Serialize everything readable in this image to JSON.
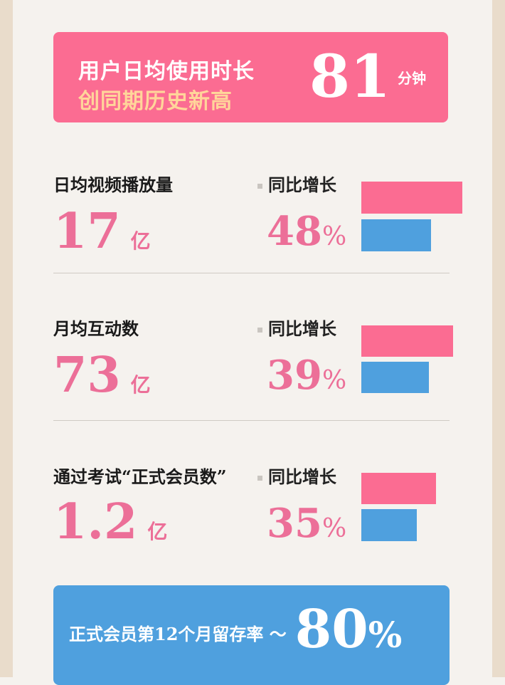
{
  "hero": {
    "line1": "用户日均使用时长",
    "line2": "创同期历史新高",
    "value": "81",
    "unit": "分钟"
  },
  "stats": [
    {
      "label": "日均视频播放量",
      "value": "17",
      "unit": "亿",
      "yoy_label": "同比增长",
      "yoy_value": "48",
      "yoy_unit": "%"
    },
    {
      "label": "月均互动数",
      "value": "73",
      "unit": "亿",
      "yoy_label": "同比增长",
      "yoy_value": "39",
      "yoy_unit": "%"
    },
    {
      "label": "通过考试“正式会员数”",
      "value": "1.2",
      "unit": "亿",
      "yoy_label": "同比增长",
      "yoy_value": "35",
      "yoy_unit": "%"
    }
  ],
  "footer": {
    "text": "正式会员第12个月留存率 ～",
    "value": "80",
    "unit": "%"
  },
  "colors": {
    "pink": "#fb6c92",
    "blue": "#4fa0de",
    "number_pink": "#ec6f98",
    "highlight": "#ffd59a"
  }
}
